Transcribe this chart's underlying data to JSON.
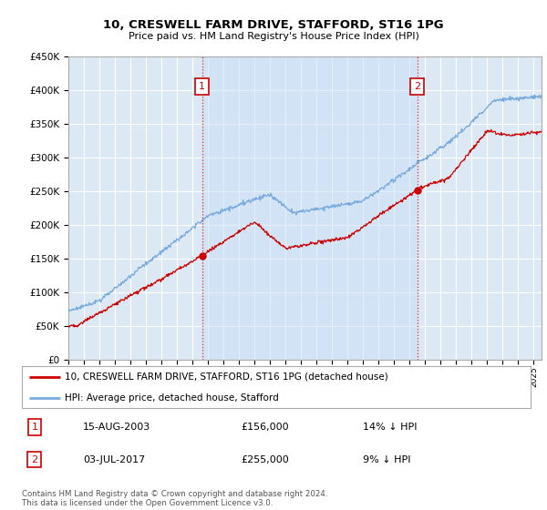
{
  "title": "10, CRESWELL FARM DRIVE, STAFFORD, ST16 1PG",
  "subtitle": "Price paid vs. HM Land Registry's House Price Index (HPI)",
  "ylim": [
    0,
    450000
  ],
  "yticks": [
    0,
    50000,
    100000,
    150000,
    200000,
    250000,
    300000,
    350000,
    400000,
    450000
  ],
  "background_color": "#dce9f5",
  "legend_entry1": "10, CRESWELL FARM DRIVE, STAFFORD, ST16 1PG (detached house)",
  "legend_entry2": "HPI: Average price, detached house, Stafford",
  "transaction1_date": "15-AUG-2003",
  "transaction1_price": "£156,000",
  "transaction1_hpi": "14% ↓ HPI",
  "transaction2_date": "03-JUL-2017",
  "transaction2_price": "£255,000",
  "transaction2_hpi": "9% ↓ HPI",
  "footnote": "Contains HM Land Registry data © Crown copyright and database right 2024.\nThis data is licensed under the Open Government Licence v3.0.",
  "line1_color": "#cc0000",
  "line2_color": "#7aaadd",
  "shade_color": "#ddeeff",
  "transaction1_year": 2003.62,
  "transaction1_value": 156000,
  "transaction2_year": 2017.5,
  "transaction2_value": 255000,
  "xmin": 1995,
  "xmax": 2025.5
}
